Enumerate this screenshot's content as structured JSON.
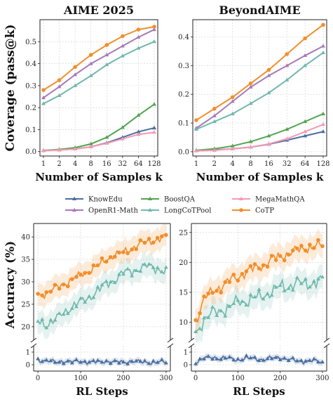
{
  "colors": {
    "KnowEdu": "#4a6fa0",
    "BoostQA": "#52a350",
    "MegaMathQA": "#f49ab2",
    "OpenR1-Math": "#a67ab8",
    "LongCoTPool": "#70b8ad",
    "CoTP": "#f28e2b"
  },
  "chart_data": [
    {
      "type": "line",
      "title": "AIME 2025",
      "xlabel": "Number of Samples k",
      "ylabel": "Coverage (pass@k)",
      "x": [
        "1",
        "2",
        "4",
        "8",
        "16",
        "32",
        "64",
        "128"
      ],
      "ylim": [
        -0.02,
        0.6
      ],
      "yticks": [
        0.0,
        0.1,
        0.2,
        0.3,
        0.4,
        0.5
      ],
      "series": [
        {
          "name": "KnowEdu",
          "values": [
            0.005,
            0.008,
            0.012,
            0.022,
            0.04,
            0.065,
            0.09,
            0.108
          ]
        },
        {
          "name": "BoostQA",
          "values": [
            0.005,
            0.01,
            0.018,
            0.035,
            0.065,
            0.11,
            0.165,
            0.215
          ]
        },
        {
          "name": "MegaMathQA",
          "values": [
            0.004,
            0.007,
            0.012,
            0.022,
            0.038,
            0.058,
            0.078,
            0.088
          ]
        },
        {
          "name": "OpenR1-Math",
          "values": [
            0.245,
            0.295,
            0.35,
            0.4,
            0.44,
            0.48,
            0.52,
            0.555
          ]
        },
        {
          "name": "LongCoTPool",
          "values": [
            0.218,
            0.255,
            0.3,
            0.345,
            0.395,
            0.435,
            0.47,
            0.5
          ]
        },
        {
          "name": "CoTP",
          "values": [
            0.28,
            0.325,
            0.385,
            0.44,
            0.485,
            0.525,
            0.555,
            0.568
          ]
        }
      ]
    },
    {
      "type": "line",
      "title": "BeyondAIME",
      "xlabel": "Number of Samples k",
      "ylabel": "",
      "x": [
        "1",
        "2",
        "4",
        "8",
        "16",
        "32",
        "64",
        "128"
      ],
      "ylim": [
        -0.015,
        0.46
      ],
      "yticks": [
        0.0,
        0.1,
        0.2,
        0.3,
        0.4
      ],
      "series": [
        {
          "name": "KnowEdu",
          "values": [
            0.004,
            0.006,
            0.01,
            0.016,
            0.026,
            0.04,
            0.055,
            0.07
          ]
        },
        {
          "name": "BoostQA",
          "values": [
            0.005,
            0.01,
            0.02,
            0.035,
            0.055,
            0.078,
            0.105,
            0.132
          ]
        },
        {
          "name": "MegaMathQA",
          "values": [
            0.003,
            0.005,
            0.01,
            0.016,
            0.027,
            0.045,
            0.07,
            0.095
          ]
        },
        {
          "name": "OpenR1-Math",
          "values": [
            0.082,
            0.125,
            0.175,
            0.225,
            0.265,
            0.3,
            0.335,
            0.368
          ]
        },
        {
          "name": "LongCoTPool",
          "values": [
            0.078,
            0.105,
            0.132,
            0.168,
            0.205,
            0.25,
            0.3,
            0.345
          ]
        },
        {
          "name": "CoTP",
          "values": [
            0.11,
            0.15,
            0.19,
            0.238,
            0.285,
            0.34,
            0.395,
            0.442
          ]
        }
      ]
    },
    {
      "type": "line",
      "title": "",
      "xlabel": "RL Steps",
      "ylabel": "Accuracy (%)",
      "xlim": [
        -10,
        310
      ],
      "xticks": [
        0,
        100,
        200,
        300
      ],
      "ylim_top": [
        17,
        43
      ],
      "yticks_top": [
        20,
        25,
        30,
        35,
        40
      ],
      "ylim_bottom": [
        -0.5,
        1.5
      ],
      "yticks_bottom": [
        0,
        1
      ],
      "band_halfwidth": 2.5,
      "series": [
        {
          "name": "LongCoTPool",
          "x": [
            0,
            20,
            40,
            60,
            80,
            100,
            120,
            140,
            160,
            180,
            200,
            220,
            240,
            260,
            280,
            300
          ],
          "values": [
            21,
            20.5,
            21.5,
            23,
            24.5,
            25.5,
            26.5,
            28,
            29.5,
            30.5,
            32,
            32.5,
            33,
            33.5,
            33,
            32
          ]
        },
        {
          "name": "CoTP",
          "x": [
            0,
            20,
            40,
            60,
            80,
            100,
            120,
            140,
            160,
            180,
            200,
            220,
            240,
            260,
            280,
            300
          ],
          "values": [
            27,
            27.5,
            28.5,
            29.5,
            30.5,
            31.5,
            32.5,
            33.5,
            35,
            36,
            36.5,
            37.5,
            38.5,
            39,
            39.5,
            40
          ]
        },
        {
          "name": "KnowEdu",
          "x": [
            0,
            20,
            40,
            60,
            80,
            100,
            120,
            140,
            160,
            180,
            200,
            220,
            240,
            260,
            280,
            300
          ],
          "values": [
            0.4,
            0.3,
            0.2,
            0.3,
            0.2,
            0.3,
            0.2,
            0.2,
            0.3,
            0.2,
            0.2,
            0.3,
            0.2,
            0.2,
            0.2,
            0.2
          ]
        }
      ]
    },
    {
      "type": "line",
      "title": "",
      "xlabel": "RL Steps",
      "ylabel": "",
      "xlim": [
        -10,
        310
      ],
      "xticks": [
        0,
        100,
        200,
        300
      ],
      "ylim_top": [
        7,
        26.5
      ],
      "yticks_top": [
        10,
        15,
        20,
        25
      ],
      "ylim_bottom": [
        -0.5,
        1.5
      ],
      "yticks_bottom": [
        0,
        1
      ],
      "band_halfwidth": 2.0,
      "series": [
        {
          "name": "LongCoTPool",
          "x": [
            0,
            20,
            40,
            60,
            80,
            100,
            120,
            140,
            160,
            180,
            200,
            220,
            240,
            260,
            280,
            300
          ],
          "values": [
            8,
            10.5,
            11.5,
            12,
            12.5,
            13.5,
            13.5,
            14,
            14.5,
            15,
            16,
            16,
            16.5,
            16.5,
            16.5,
            17
          ]
        },
        {
          "name": "CoTP",
          "x": [
            0,
            20,
            40,
            60,
            80,
            100,
            120,
            140,
            160,
            180,
            200,
            220,
            240,
            260,
            280,
            300
          ],
          "values": [
            10,
            14,
            15,
            16,
            17,
            17.5,
            18.5,
            19,
            19.5,
            20.5,
            21,
            21.5,
            22,
            22.5,
            22.5,
            23
          ]
        },
        {
          "name": "KnowEdu",
          "x": [
            0,
            20,
            40,
            60,
            80,
            100,
            120,
            140,
            160,
            180,
            200,
            220,
            240,
            260,
            280,
            300
          ],
          "values": [
            0.2,
            0.5,
            0.6,
            0.5,
            0.5,
            0.4,
            0.5,
            0.5,
            0.4,
            0.5,
            0.6,
            0.4,
            0.3,
            0.3,
            0.3,
            0.2
          ]
        }
      ]
    }
  ],
  "legend": {
    "placement": "center",
    "entries": [
      "KnowEdu",
      "BoostQA",
      "MegaMathQA",
      "OpenR1-Math",
      "LongCoTPool",
      "CoTP"
    ]
  }
}
